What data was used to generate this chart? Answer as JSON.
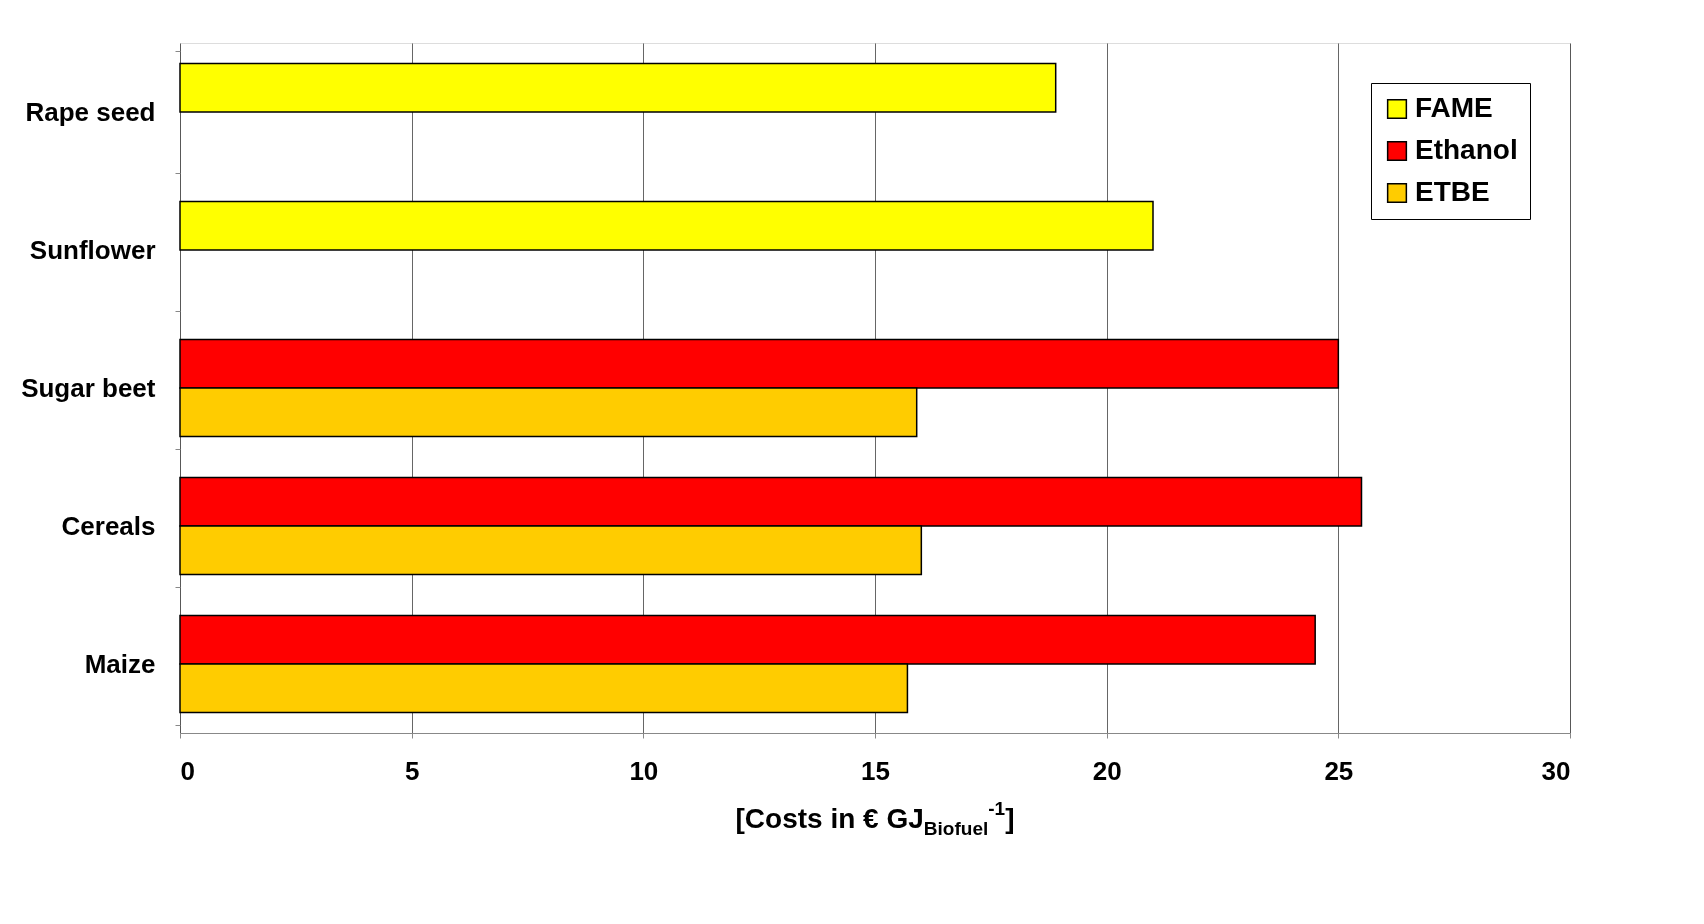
{
  "chart_data": {
    "type": "bar",
    "orientation": "horizontal",
    "categories": [
      "Rape seed",
      "Sunflower",
      "Sugar beet",
      "Cereals",
      "Maize"
    ],
    "series": [
      {
        "name": "FAME",
        "color": "#ffff00",
        "values": [
          18.9,
          21.0,
          null,
          null,
          null
        ]
      },
      {
        "name": "Ethanol",
        "color": "#ff0000",
        "values": [
          null,
          null,
          25.0,
          25.5,
          24.5
        ]
      },
      {
        "name": "ETBE",
        "color": "#ffcc00",
        "values": [
          null,
          null,
          15.9,
          16.0,
          15.7
        ]
      }
    ],
    "xlabel": "[Costs in € GJ$_{Biofuel}$$^{-1}$]",
    "xlim": [
      0,
      30
    ],
    "xticks": [
      0,
      5,
      10,
      15,
      20,
      25,
      30
    ],
    "grid": "x",
    "legend": "top right"
  }
}
